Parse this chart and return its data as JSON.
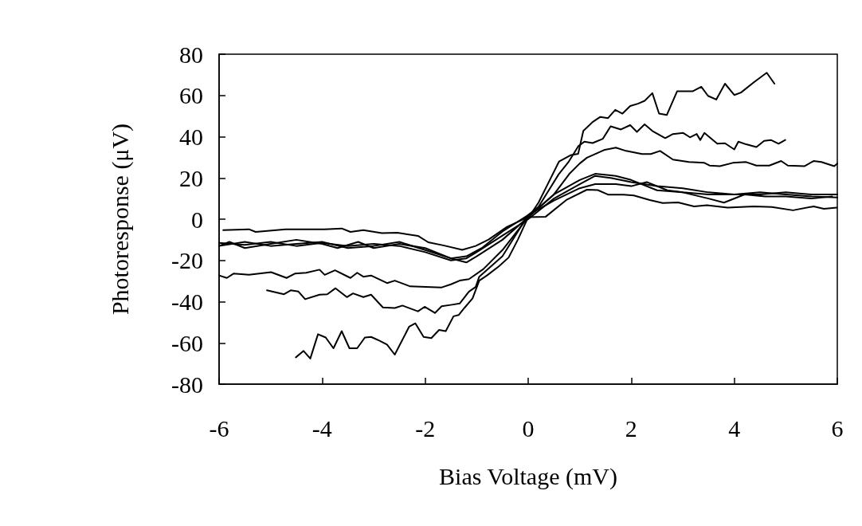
{
  "chart_data": {
    "type": "line",
    "xlabel": "Bias Voltage (mV)",
    "ylabel": "Photoresponse (μV)",
    "xlim": [
      -6,
      6
    ],
    "ylim": [
      -80,
      80
    ],
    "xticks": [
      -6,
      -4,
      -2,
      0,
      2,
      4,
      6
    ],
    "yticks": [
      -80,
      -60,
      -40,
      -20,
      0,
      20,
      40,
      60,
      80
    ],
    "grid": false,
    "series": [
      {
        "color": "#000000",
        "x": [
          -4.51,
          -4.36,
          -4.23,
          -4.08,
          -3.93,
          -3.78,
          -3.62,
          -3.47,
          -3.32,
          -3.17,
          -3.05,
          -2.89,
          -2.74,
          -2.59,
          -2.31,
          -2.19,
          -2.03,
          -1.88,
          -1.73,
          -1.6,
          -1.45,
          -1.35,
          -1.23,
          -1.08,
          -0.95,
          -0.8,
          -0.57,
          -0.38,
          -0.2,
          -0.03,
          0.2,
          0.4,
          0.6,
          0.82,
          0.97,
          1.07,
          1.25,
          1.4,
          1.55,
          1.69,
          1.83,
          1.98,
          2.13,
          2.26,
          2.41,
          2.54,
          2.69,
          2.89,
          3.19,
          3.36,
          3.49,
          3.65,
          3.82,
          4.0,
          4.13,
          4.38,
          4.63,
          4.78
        ],
        "values": [
          -67,
          -63.9,
          -67.6,
          -55.8,
          -57.4,
          -62.6,
          -54.3,
          -62.6,
          -62.6,
          -57.4,
          -57.1,
          -58.9,
          -60.8,
          -65.7,
          -52.1,
          -50.5,
          -57.1,
          -57.7,
          -53.7,
          -54.3,
          -47.1,
          -46.5,
          -42.8,
          -38.4,
          -29.8,
          -27.3,
          -22.9,
          -18.6,
          -9.9,
          -0.6,
          8,
          18,
          28,
          31,
          31.7,
          42.8,
          47.1,
          49.6,
          49,
          53,
          51.2,
          54.9,
          56,
          57.4,
          61.1,
          51.2,
          50.5,
          62,
          62,
          64.2,
          59.8,
          58,
          65.7,
          60.2,
          61.4,
          66.4,
          71,
          65.7
        ]
      },
      {
        "color": "#000000",
        "x": [
          -5.07,
          -4.74,
          -4.61,
          -4.46,
          -4.33,
          -4.05,
          -3.9,
          -3.74,
          -3.52,
          -3.4,
          -3.2,
          -3.05,
          -2.82,
          -2.59,
          -2.44,
          -2.14,
          -2.01,
          -1.81,
          -1.68,
          -1.48,
          -1.33,
          -1.15,
          -1.02,
          -0.95,
          -0.5,
          0,
          0.2,
          0.4,
          0.59,
          0.79,
          0.97,
          1.09,
          1.25,
          1.45,
          1.6,
          1.8,
          1.98,
          2.11,
          2.26,
          2.41,
          2.66,
          2.81,
          3.01,
          3.14,
          3.27,
          3.34,
          3.42,
          3.67,
          3.82,
          4.0,
          4.08,
          4.23,
          4.43,
          4.58,
          4.71,
          4.86,
          4.99
        ],
        "values": [
          -34.5,
          -36.4,
          -34.5,
          -35.1,
          -38.8,
          -36.6,
          -36.4,
          -33.5,
          -37.8,
          -36,
          -37.8,
          -36.6,
          -42.8,
          -43.1,
          -41.9,
          -44.7,
          -42.5,
          -45.5,
          -42.2,
          -41.5,
          -40.9,
          -35.1,
          -32.9,
          -27.9,
          -18,
          2,
          6,
          14,
          21.7,
          28,
          35.3,
          37.6,
          36.9,
          39,
          45,
          43.5,
          45.6,
          42.3,
          46,
          42.8,
          39.3,
          41.3,
          41.8,
          39.7,
          41.3,
          38.4,
          41.8,
          36.6,
          36.8,
          33.8,
          37.6,
          36.3,
          35,
          38,
          38.4,
          36.6,
          38.4
        ]
      },
      {
        "color": "#000000",
        "x": [
          -6,
          -5.85,
          -5.72,
          -5.42,
          -4.99,
          -4.69,
          -4.53,
          -4.31,
          -4.05,
          -3.95,
          -3.75,
          -3.45,
          -3.32,
          -3.2,
          -3.05,
          -2.74,
          -2.59,
          -2.29,
          -1.68,
          -1.5,
          -1.33,
          -1.15,
          -0.87,
          -0.5,
          0,
          0.5,
          0.8,
          1.0,
          1.14,
          1.47,
          1.7,
          1.9,
          2.21,
          2.38,
          2.56,
          2.81,
          3.12,
          3.42,
          3.52,
          3.72,
          3.97,
          4.23,
          4.43,
          4.68,
          4.91,
          5.04,
          5.36,
          5.54,
          5.69,
          5.94,
          6
        ],
        "values": [
          -27.3,
          -28.5,
          -26.4,
          -27,
          -25.7,
          -28.5,
          -26.4,
          -26,
          -24.5,
          -27,
          -24.8,
          -28.5,
          -26,
          -27.9,
          -27.3,
          -31,
          -29.8,
          -32.6,
          -33.1,
          -31.6,
          -29.8,
          -29.1,
          -24.2,
          -15,
          1,
          12,
          22,
          27,
          29.8,
          33.5,
          34.7,
          33.1,
          31.6,
          31.6,
          33.1,
          28.9,
          27.7,
          27.3,
          26,
          25.7,
          27.3,
          27.7,
          26,
          26,
          28.2,
          26,
          25.7,
          28.2,
          27.7,
          25.7,
          27
        ]
      },
      {
        "color": "#000000",
        "x": [
          -6,
          -5.5,
          -5,
          -4.5,
          -4,
          -3.5,
          -3,
          -2.5,
          -2,
          -1.5,
          -1.2,
          -1,
          -0.5,
          0,
          0.5,
          1,
          1.3,
          1.6,
          2,
          2.5,
          3,
          3.5,
          4,
          4.5,
          5,
          5.5,
          6
        ],
        "values": [
          -11.5,
          -12.5,
          -11,
          -13,
          -11.5,
          -13,
          -12,
          -13,
          -16,
          -20,
          -19,
          -16,
          -8,
          0,
          10,
          17,
          21,
          20,
          18,
          16,
          15,
          13,
          12,
          12,
          13,
          12,
          12
        ]
      },
      {
        "color": "#000000",
        "x": [
          -6,
          -5.8,
          -5.5,
          -5,
          -4.5,
          -4,
          -3.7,
          -3.3,
          -3,
          -2.5,
          -2,
          -1.5,
          -1.2,
          -1,
          -0.5,
          0,
          0.5,
          1,
          1.3,
          1.7,
          2,
          2.5,
          3,
          3.5,
          3.8,
          4.2,
          4.6,
          5,
          5.5,
          5.9
        ],
        "values": [
          -13,
          -11,
          -14,
          -12,
          -10,
          -12,
          -14,
          -11,
          -14,
          -12,
          -14,
          -19,
          -21,
          -18,
          -10,
          1,
          12,
          19,
          22,
          21,
          19,
          14,
          13,
          10,
          8,
          12,
          11,
          11,
          10,
          11
        ]
      },
      {
        "color": "#000000",
        "x": [
          -6,
          -5.5,
          -5,
          -4.5,
          -4,
          -3.5,
          -3,
          -2.5,
          -2,
          -1.5,
          -1.2,
          -0.9,
          -0.5,
          0,
          0.5,
          1,
          1.3,
          1.7,
          2,
          2.3,
          2.7,
          3,
          3.5,
          4,
          4.5,
          5,
          5.5,
          6
        ],
        "values": [
          -13,
          -11,
          -13,
          -12,
          -11,
          -14,
          -13,
          -11,
          -15,
          -19,
          -18,
          -14,
          -6,
          2,
          9,
          15,
          17,
          17,
          16,
          18,
          14,
          13,
          12,
          12,
          13,
          12,
          11,
          10.5
        ]
      },
      {
        "color": "#000000",
        "x": [
          -5.92,
          -5.42,
          -5.29,
          -4.71,
          -3.95,
          -3.62,
          -3.45,
          -3.2,
          -2.84,
          -2.54,
          -2.14,
          -1.94,
          -1.63,
          -1.28,
          -1.02,
          -0.77,
          -0.41,
          0,
          0.34,
          0.74,
          1.14,
          1.35,
          1.55,
          1.85,
          2.05,
          2.36,
          2.61,
          2.91,
          3.22,
          3.47,
          3.87,
          4.38,
          4.73,
          5.14,
          5.54,
          5.74,
          5.99
        ],
        "values": [
          -5.3,
          -4.9,
          -6.2,
          -4.9,
          -4.9,
          -4.5,
          -6.2,
          -5.3,
          -6.8,
          -6.6,
          -8.1,
          -11.2,
          -12.8,
          -14.9,
          -13,
          -9.9,
          -3.7,
          1,
          1.2,
          9.3,
          14.3,
          14.1,
          11.9,
          11.9,
          11.5,
          9.3,
          7.8,
          8.1,
          6.2,
          6.8,
          5.6,
          6.2,
          5.9,
          4.3,
          6.2,
          5,
          5.6
        ]
      }
    ]
  }
}
